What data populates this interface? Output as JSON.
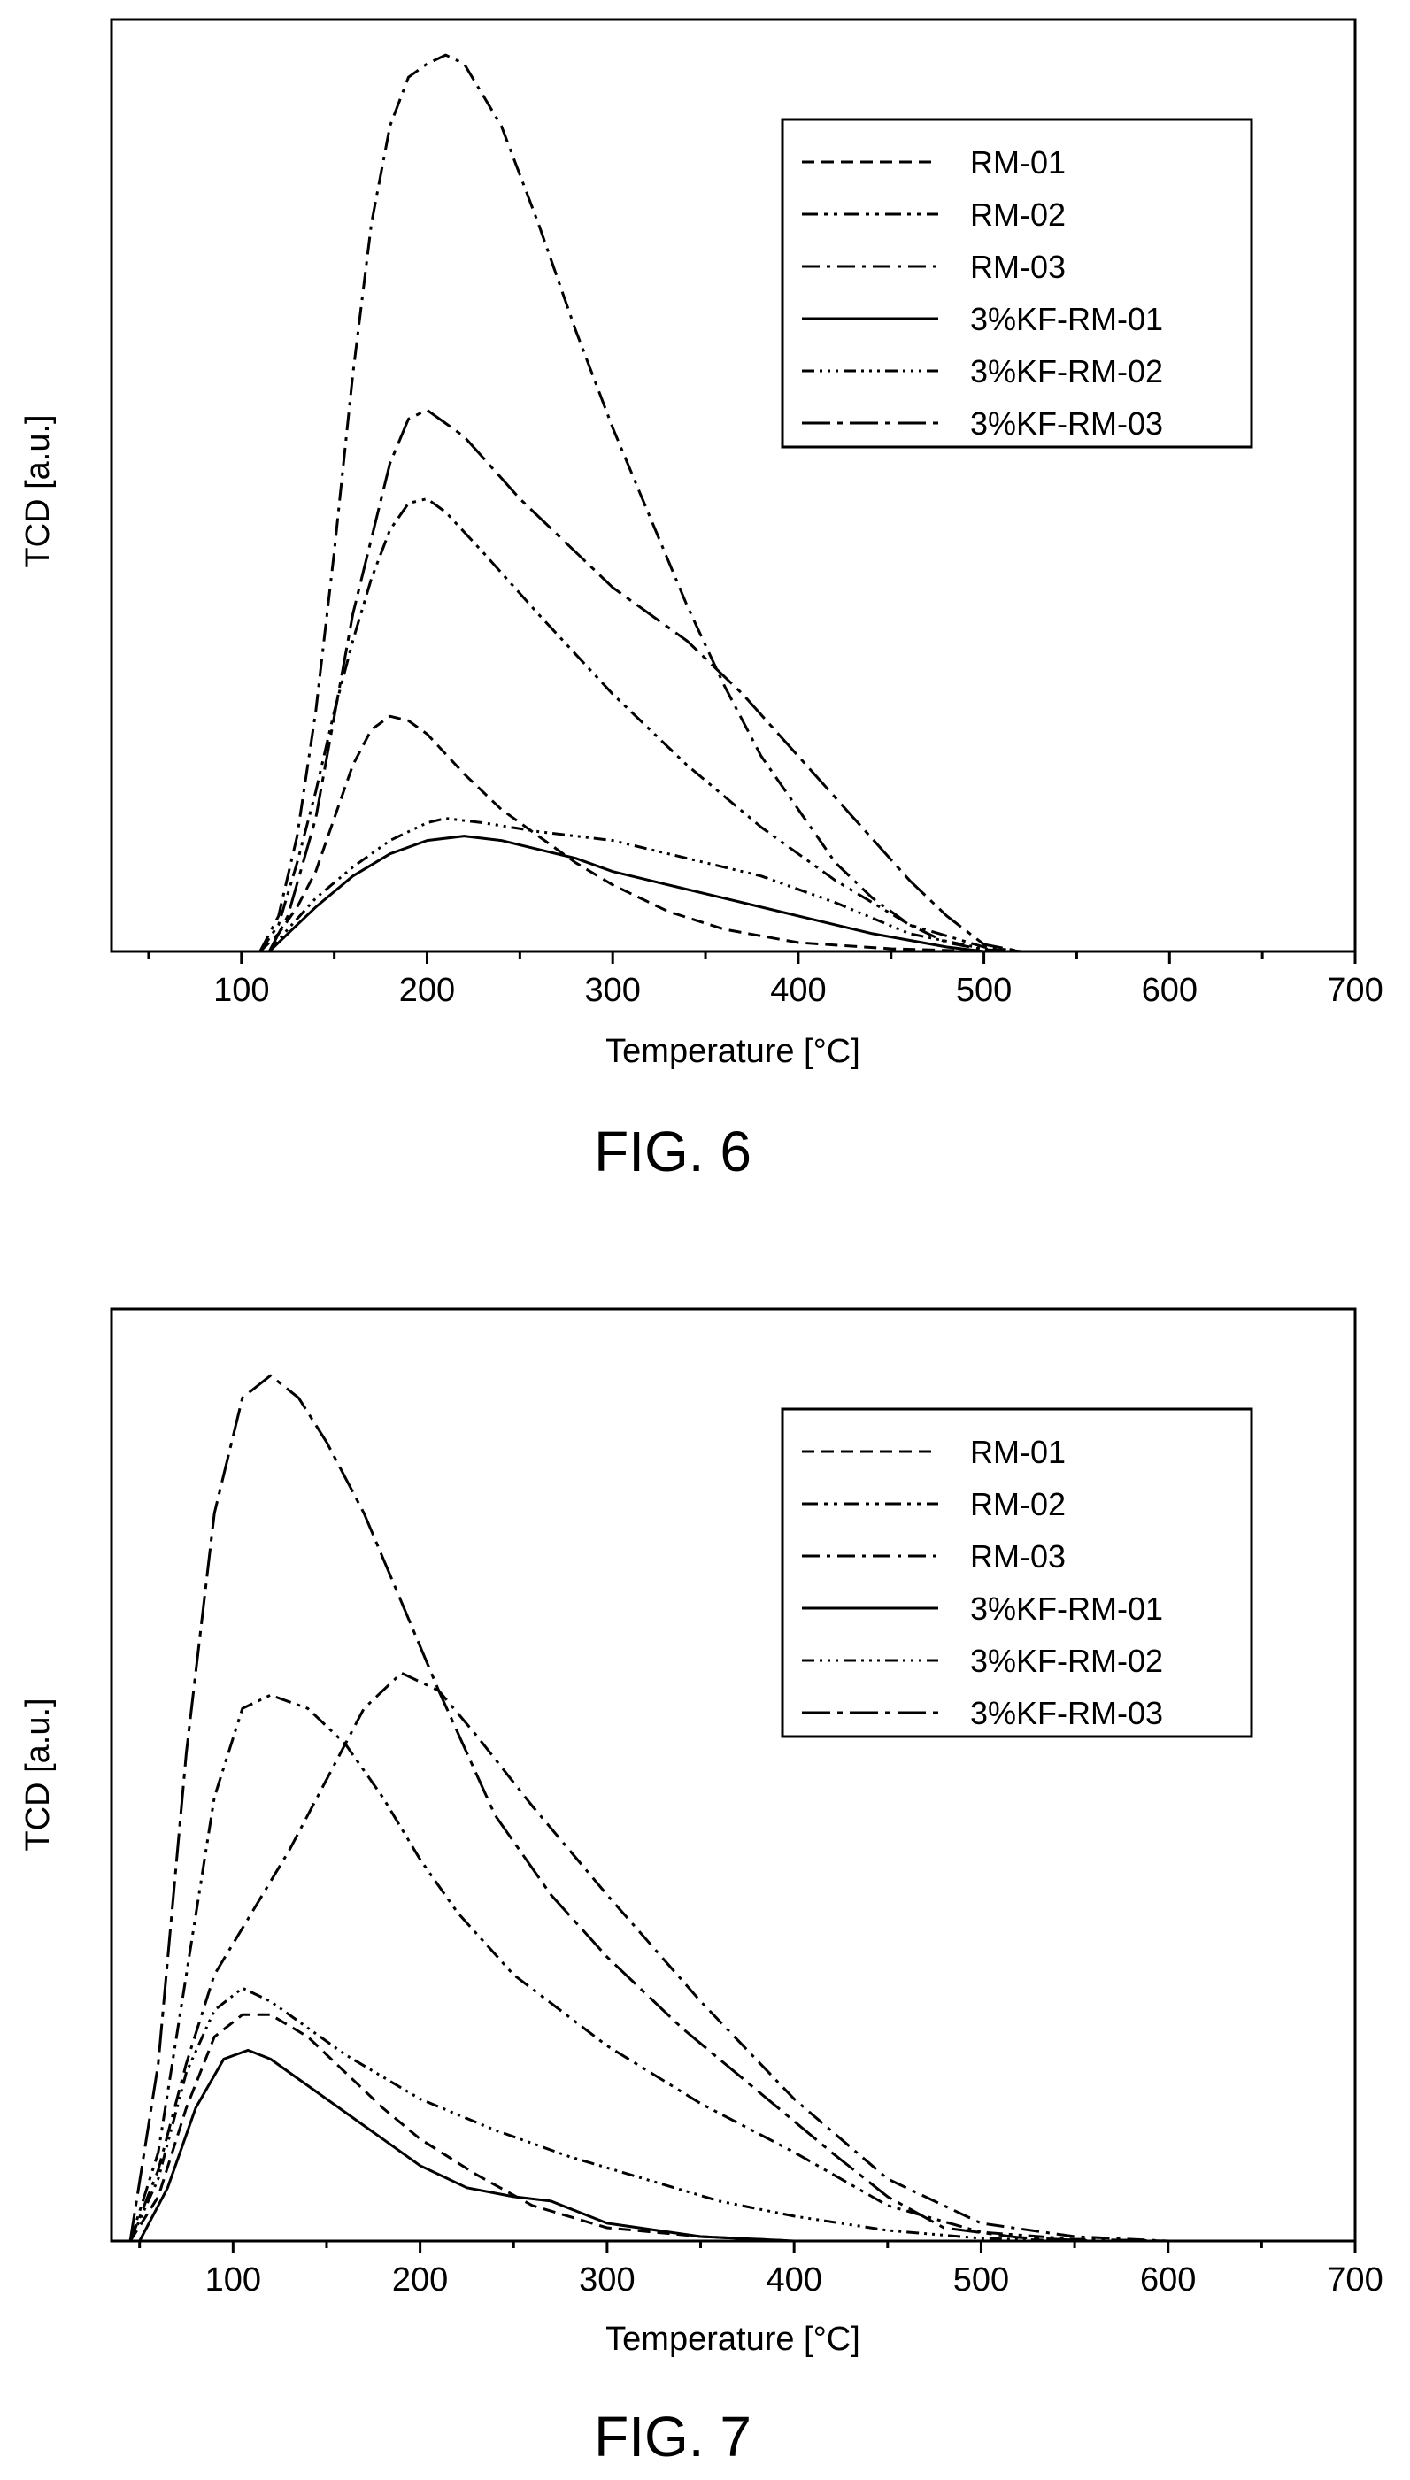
{
  "figures": [
    {
      "caption": "FIG. 6"
    },
    {
      "caption": "FIG. 7"
    }
  ],
  "chart_data": [
    {
      "type": "line",
      "xlabel": "Temperature [°C]",
      "ylabel": "TCD [a.u.]",
      "xlim": [
        30,
        700
      ],
      "ylim": [
        0,
        1.05
      ],
      "x_ticks": [
        100,
        200,
        300,
        400,
        500,
        600,
        700
      ],
      "y_ticks_shown": false,
      "legend_position": "top-right",
      "series": [
        {
          "name": "RM-01",
          "dash": "dash",
          "points": [
            [
              110,
              0
            ],
            [
              120,
              0.02
            ],
            [
              130,
              0.05
            ],
            [
              140,
              0.09
            ],
            [
              150,
              0.15
            ],
            [
              160,
              0.21
            ],
            [
              170,
              0.25
            ],
            [
              180,
              0.265
            ],
            [
              190,
              0.26
            ],
            [
              200,
              0.245
            ],
            [
              220,
              0.2
            ],
            [
              240,
              0.16
            ],
            [
              260,
              0.13
            ],
            [
              280,
              0.1
            ],
            [
              300,
              0.075
            ],
            [
              330,
              0.045
            ],
            [
              360,
              0.025
            ],
            [
              400,
              0.01
            ],
            [
              450,
              0.003
            ],
            [
              500,
              0
            ]
          ]
        },
        {
          "name": "RM-02",
          "dash": "dashdotdot",
          "points": [
            [
              110,
              0
            ],
            [
              120,
              0.03
            ],
            [
              130,
              0.1
            ],
            [
              140,
              0.18
            ],
            [
              150,
              0.27
            ],
            [
              160,
              0.35
            ],
            [
              170,
              0.42
            ],
            [
              180,
              0.475
            ],
            [
              190,
              0.505
            ],
            [
              200,
              0.51
            ],
            [
              210,
              0.495
            ],
            [
              230,
              0.45
            ],
            [
              260,
              0.38
            ],
            [
              300,
              0.29
            ],
            [
              340,
              0.21
            ],
            [
              380,
              0.14
            ],
            [
              420,
              0.08
            ],
            [
              460,
              0.03
            ],
            [
              500,
              0.005
            ],
            [
              520,
              0
            ]
          ]
        },
        {
          "name": "RM-03",
          "dash": "dashdot",
          "points": [
            [
              110,
              0
            ],
            [
              120,
              0.04
            ],
            [
              130,
              0.13
            ],
            [
              140,
              0.27
            ],
            [
              150,
              0.45
            ],
            [
              160,
              0.65
            ],
            [
              170,
              0.82
            ],
            [
              180,
              0.93
            ],
            [
              190,
              0.985
            ],
            [
              200,
              1.0
            ],
            [
              210,
              1.01
            ],
            [
              220,
              1.0
            ],
            [
              240,
              0.93
            ],
            [
              260,
              0.82
            ],
            [
              280,
              0.7
            ],
            [
              300,
              0.59
            ],
            [
              320,
              0.49
            ],
            [
              340,
              0.39
            ],
            [
              360,
              0.3
            ],
            [
              380,
              0.22
            ],
            [
              400,
              0.16
            ],
            [
              420,
              0.1
            ],
            [
              440,
              0.06
            ],
            [
              460,
              0.03
            ],
            [
              480,
              0.01
            ],
            [
              500,
              0.002
            ],
            [
              520,
              0
            ]
          ]
        },
        {
          "name": "3%KF-RM-01",
          "dash": "solid",
          "points": [
            [
              115,
              0
            ],
            [
              125,
              0.02
            ],
            [
              140,
              0.05
            ],
            [
              160,
              0.085
            ],
            [
              180,
              0.11
            ],
            [
              200,
              0.125
            ],
            [
              220,
              0.13
            ],
            [
              240,
              0.125
            ],
            [
              260,
              0.115
            ],
            [
              280,
              0.105
            ],
            [
              300,
              0.09
            ],
            [
              330,
              0.075
            ],
            [
              360,
              0.06
            ],
            [
              400,
              0.04
            ],
            [
              440,
              0.02
            ],
            [
              480,
              0.005
            ],
            [
              500,
              0
            ]
          ]
        },
        {
          "name": "3%KF-RM-02",
          "dash": "dashdotdotdot",
          "points": [
            [
              115,
              0
            ],
            [
              125,
              0.025
            ],
            [
              140,
              0.06
            ],
            [
              160,
              0.095
            ],
            [
              180,
              0.125
            ],
            [
              200,
              0.145
            ],
            [
              210,
              0.15
            ],
            [
              230,
              0.145
            ],
            [
              260,
              0.135
            ],
            [
              300,
              0.125
            ],
            [
              340,
              0.105
            ],
            [
              380,
              0.085
            ],
            [
              420,
              0.055
            ],
            [
              460,
              0.02
            ],
            [
              500,
              0.003
            ],
            [
              520,
              0
            ]
          ]
        },
        {
          "name": "3%KF-RM-03",
          "dash": "longdash",
          "points": [
            [
              115,
              0
            ],
            [
              125,
              0.04
            ],
            [
              140,
              0.15
            ],
            [
              160,
              0.38
            ],
            [
              180,
              0.55
            ],
            [
              190,
              0.6
            ],
            [
              200,
              0.61
            ],
            [
              220,
              0.58
            ],
            [
              250,
              0.51
            ],
            [
              280,
              0.45
            ],
            [
              300,
              0.41
            ],
            [
              340,
              0.35
            ],
            [
              370,
              0.29
            ],
            [
              400,
              0.22
            ],
            [
              430,
              0.15
            ],
            [
              460,
              0.08
            ],
            [
              480,
              0.04
            ],
            [
              500,
              0.008
            ],
            [
              520,
              0
            ]
          ]
        }
      ]
    },
    {
      "type": "line",
      "xlabel": "Temperature [°C]",
      "ylabel": "TCD [a.u.]",
      "xlim": [
        35,
        700
      ],
      "ylim": [
        0,
        1.05
      ],
      "x_ticks": [
        100,
        200,
        300,
        400,
        500,
        600,
        700
      ],
      "y_ticks_shown": false,
      "legend_position": "top-right",
      "series": [
        {
          "name": "RM-01",
          "dash": "dash",
          "points": [
            [
              45,
              0
            ],
            [
              60,
              0.05
            ],
            [
              75,
              0.15
            ],
            [
              90,
              0.23
            ],
            [
              105,
              0.255
            ],
            [
              120,
              0.255
            ],
            [
              140,
              0.23
            ],
            [
              160,
              0.19
            ],
            [
              180,
              0.15
            ],
            [
              200,
              0.115
            ],
            [
              230,
              0.075
            ],
            [
              260,
              0.04
            ],
            [
              300,
              0.015
            ],
            [
              350,
              0.005
            ],
            [
              400,
              0
            ]
          ]
        },
        {
          "name": "RM-02",
          "dash": "dashdotdot",
          "points": [
            [
              45,
              0
            ],
            [
              60,
              0.1
            ],
            [
              75,
              0.3
            ],
            [
              90,
              0.5
            ],
            [
              105,
              0.6
            ],
            [
              120,
              0.615
            ],
            [
              140,
              0.6
            ],
            [
              160,
              0.56
            ],
            [
              180,
              0.5
            ],
            [
              200,
              0.43
            ],
            [
              220,
              0.37
            ],
            [
              250,
              0.3
            ],
            [
              300,
              0.22
            ],
            [
              350,
              0.155
            ],
            [
              400,
              0.1
            ],
            [
              450,
              0.04
            ],
            [
              500,
              0.01
            ],
            [
              550,
              0.002
            ],
            [
              600,
              0
            ]
          ]
        },
        {
          "name": "RM-03",
          "dash": "dashdot",
          "points": [
            [
              45,
              0
            ],
            [
              60,
              0.08
            ],
            [
              75,
              0.2
            ],
            [
              90,
              0.3
            ],
            [
              110,
              0.37
            ],
            [
              130,
              0.44
            ],
            [
              150,
              0.52
            ],
            [
              170,
              0.6
            ],
            [
              190,
              0.64
            ],
            [
              210,
              0.62
            ],
            [
              230,
              0.57
            ],
            [
              260,
              0.49
            ],
            [
              300,
              0.39
            ],
            [
              350,
              0.27
            ],
            [
              400,
              0.16
            ],
            [
              450,
              0.07
            ],
            [
              500,
              0.02
            ],
            [
              550,
              0.005
            ],
            [
              600,
              0
            ]
          ]
        },
        {
          "name": "3%KF-RM-01",
          "dash": "solid",
          "points": [
            [
              50,
              0
            ],
            [
              65,
              0.06
            ],
            [
              80,
              0.15
            ],
            [
              95,
              0.205
            ],
            [
              108,
              0.215
            ],
            [
              120,
              0.205
            ],
            [
              140,
              0.175
            ],
            [
              160,
              0.145
            ],
            [
              180,
              0.115
            ],
            [
              200,
              0.085
            ],
            [
              225,
              0.06
            ],
            [
              250,
              0.05
            ],
            [
              270,
              0.045
            ],
            [
              300,
              0.02
            ],
            [
              350,
              0.005
            ],
            [
              400,
              0
            ]
          ]
        },
        {
          "name": "3%KF-RM-02",
          "dash": "dashdotdotdot",
          "points": [
            [
              45,
              0
            ],
            [
              60,
              0.07
            ],
            [
              75,
              0.19
            ],
            [
              90,
              0.26
            ],
            [
              105,
              0.285
            ],
            [
              120,
              0.27
            ],
            [
              140,
              0.24
            ],
            [
              160,
              0.21
            ],
            [
              180,
              0.185
            ],
            [
              200,
              0.16
            ],
            [
              240,
              0.125
            ],
            [
              280,
              0.095
            ],
            [
              320,
              0.07
            ],
            [
              360,
              0.045
            ],
            [
              400,
              0.028
            ],
            [
              450,
              0.012
            ],
            [
              500,
              0.003
            ],
            [
              550,
              0
            ]
          ]
        },
        {
          "name": "3%KF-RM-03",
          "dash": "longdash",
          "points": [
            [
              45,
              0
            ],
            [
              60,
              0.2
            ],
            [
              75,
              0.55
            ],
            [
              90,
              0.82
            ],
            [
              105,
              0.95
            ],
            [
              120,
              0.975
            ],
            [
              135,
              0.95
            ],
            [
              150,
              0.9
            ],
            [
              170,
              0.82
            ],
            [
              190,
              0.72
            ],
            [
              210,
              0.62
            ],
            [
              240,
              0.48
            ],
            [
              270,
              0.39
            ],
            [
              300,
              0.32
            ],
            [
              340,
              0.24
            ],
            [
              380,
              0.17
            ],
            [
              420,
              0.1
            ],
            [
              450,
              0.05
            ],
            [
              480,
              0.015
            ],
            [
              520,
              0.004
            ],
            [
              560,
              0
            ]
          ]
        }
      ]
    }
  ]
}
